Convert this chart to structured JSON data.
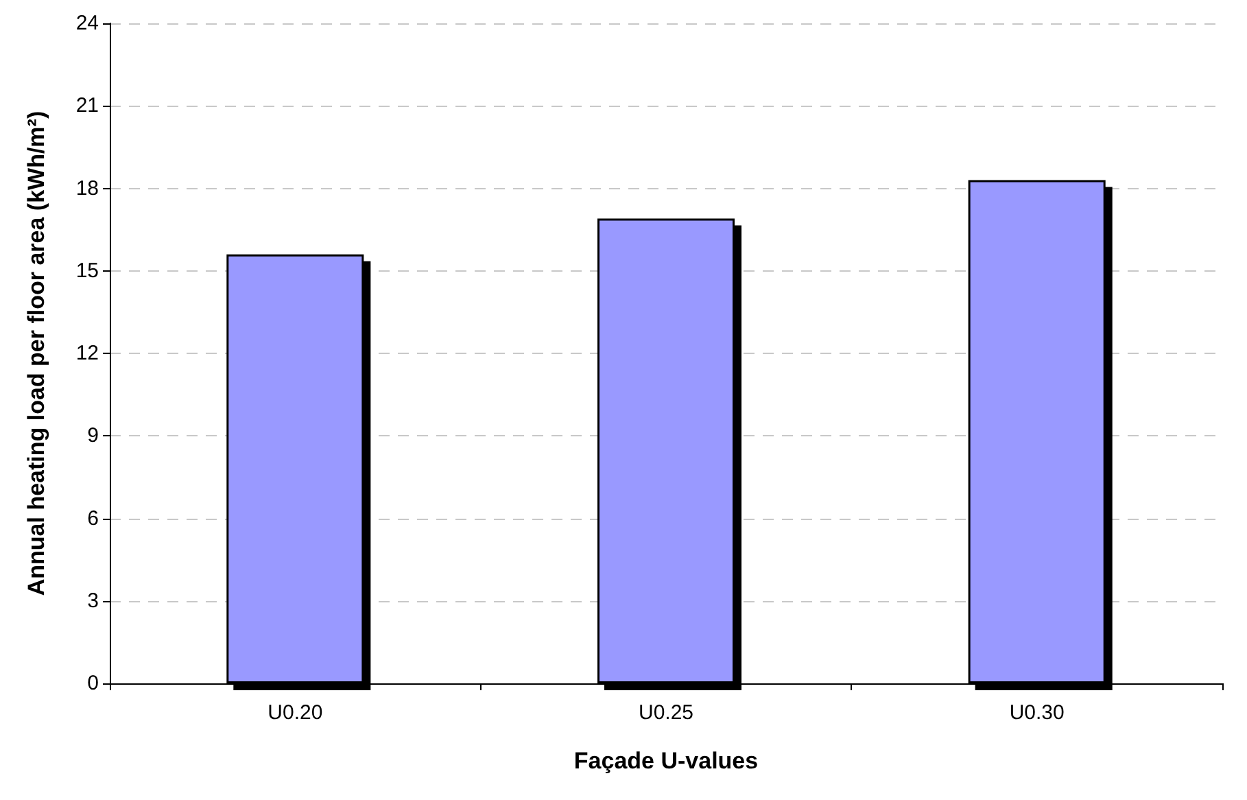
{
  "chart_data": {
    "type": "bar",
    "xlabel": "Façade U-values",
    "ylabel": "Annual heating load per floor area (kWh/m²)",
    "categories": [
      "U0.20",
      "U0.25",
      "U0.30"
    ],
    "values": [
      15.6,
      16.9,
      18.3
    ],
    "color": "#9999ff",
    "ylim": [
      0,
      24
    ],
    "yticks": [
      0,
      3,
      6,
      9,
      12,
      15,
      18,
      21,
      24
    ],
    "grid": "y"
  }
}
